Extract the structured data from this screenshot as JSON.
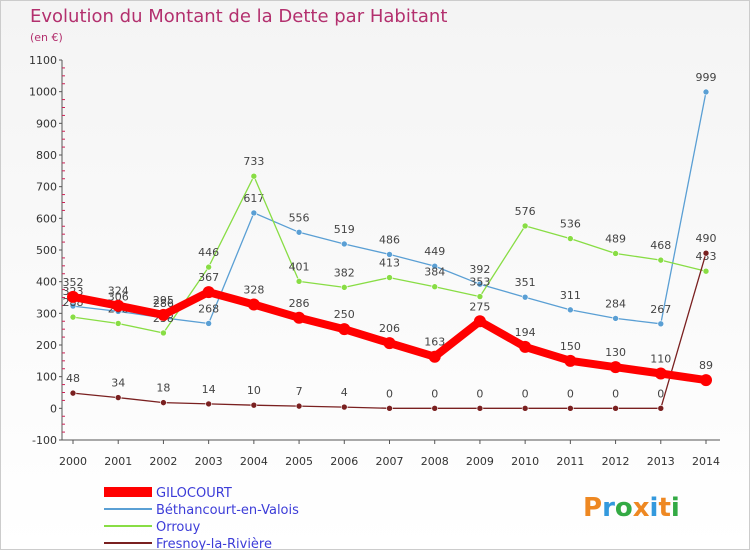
{
  "chart_data": {
    "type": "line",
    "title": "Evolution du Montant de la Dette par Habitant",
    "unit": "(en €)",
    "xlabel": "",
    "ylabel": "",
    "x": [
      "2000",
      "2001",
      "2002",
      "2003",
      "2004",
      "2005",
      "2006",
      "2007",
      "2008",
      "2009",
      "2010",
      "2011",
      "2012",
      "2013",
      "2014"
    ],
    "ylim": [
      -100,
      1100
    ],
    "yticks": [
      -100,
      0,
      100,
      200,
      300,
      400,
      500,
      600,
      700,
      800,
      900,
      1000,
      1100
    ],
    "grid": false,
    "series": [
      {
        "name": "GILOCOURT",
        "color": "#ff0000",
        "values": [
          352,
          324,
          295,
          367,
          328,
          286,
          250,
          206,
          163,
          275,
          194,
          150,
          130,
          110,
          89
        ],
        "labels": [
          "352",
          "324",
          "295",
          "367",
          "328",
          "286",
          "250",
          "206",
          "163",
          "275",
          "194",
          "150",
          "130",
          "110",
          "89"
        ]
      },
      {
        "name": "Béthancourt-en-Valois",
        "color": "#5a9fd4",
        "values": [
          323,
          306,
          286,
          268,
          617,
          556,
          519,
          486,
          449,
          392,
          351,
          311,
          284,
          267,
          999
        ],
        "labels": [
          "323",
          "306",
          "286",
          "268",
          "617",
          "556",
          "519",
          "486",
          "449",
          "392",
          "351",
          "311",
          "284",
          "267",
          "999"
        ]
      },
      {
        "name": "Orrouy",
        "color": "#88dd44",
        "values": [
          288,
          268,
          238,
          446,
          733,
          401,
          382,
          413,
          384,
          353,
          576,
          536,
          489,
          468,
          433
        ],
        "labels": [
          "288",
          "268",
          "238",
          "446",
          "733",
          "401",
          "382",
          "413",
          "384",
          "353",
          "576",
          "536",
          "489",
          "468",
          "433"
        ]
      },
      {
        "name": "Fresnoy-la-Rivière",
        "color": "#7a2020",
        "values": [
          48,
          34,
          18,
          14,
          10,
          7,
          4,
          0,
          0,
          0,
          0,
          0,
          0,
          0,
          490
        ],
        "labels": [
          "48",
          "34",
          "18",
          "14",
          "10",
          "7",
          "4",
          "0",
          "0",
          "0",
          "0",
          "0",
          "0",
          "0",
          "490"
        ]
      }
    ],
    "legend_position": "bottom-left"
  },
  "logo": {
    "text": "Proxiti",
    "letters": [
      "P",
      "r",
      "o",
      "x",
      "i",
      "t",
      "i"
    ],
    "colors": [
      "#ee8822",
      "#3399dd",
      "#33aa44",
      "#ee8822",
      "#3399dd",
      "#ee8822",
      "#33aa44"
    ]
  }
}
